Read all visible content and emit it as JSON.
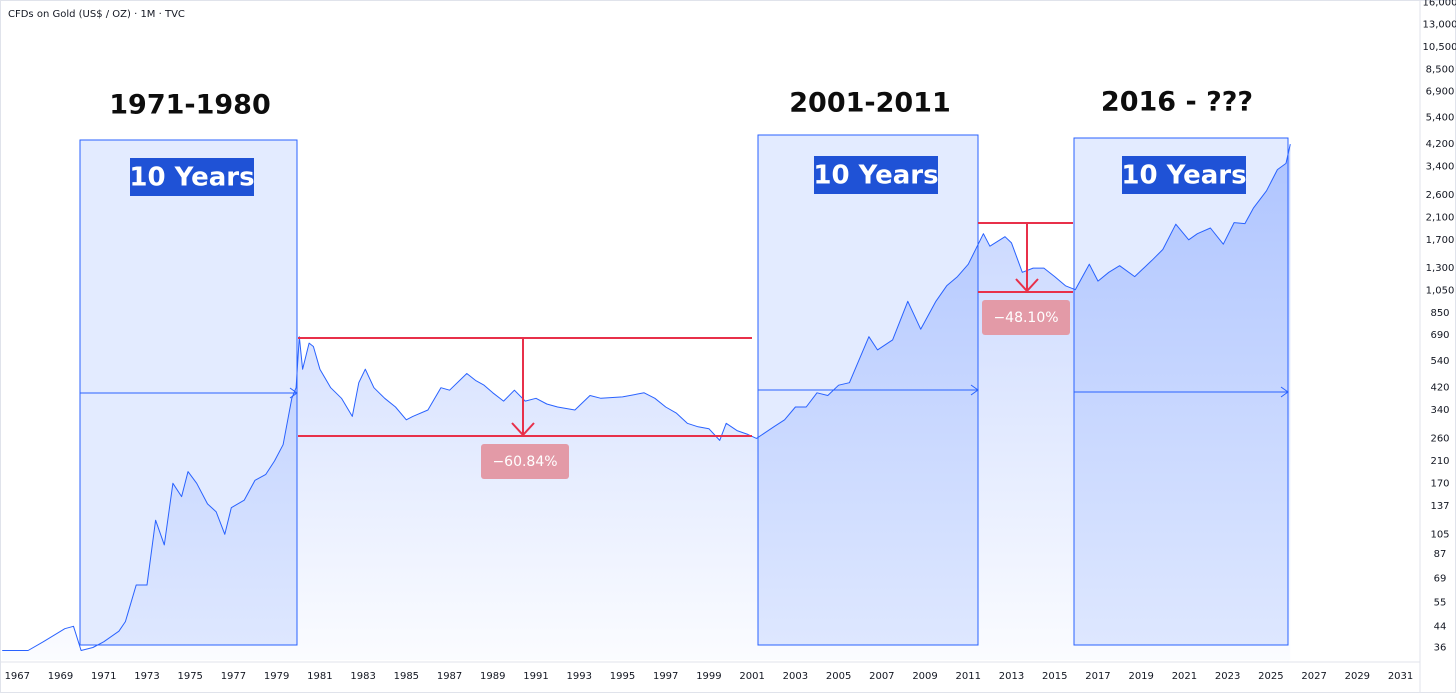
{
  "chart_data": {
    "type": "line",
    "title": "CFDs on Gold (US$ / OZ) · 1M · TVC",
    "log_scale": true,
    "grid": false,
    "color": "#2962ff",
    "xlim": [
      1966.2,
      2031.9
    ],
    "xticks": [
      1967,
      1969,
      1971,
      1973,
      1975,
      1977,
      1979,
      1981,
      1983,
      1985,
      1987,
      1989,
      1991,
      1993,
      1995,
      1997,
      1999,
      2001,
      2003,
      2005,
      2007,
      2009,
      2011,
      2013,
      2015,
      2017,
      2019,
      2021,
      2023,
      2025,
      2027,
      2029,
      2031
    ],
    "ylim": [
      32,
      16400
    ],
    "yticks": [
      36,
      44,
      55,
      69,
      87,
      105,
      137,
      170,
      210,
      260,
      340,
      420,
      540,
      690,
      850,
      {
        "value": 1050,
        "label": "1,050"
      },
      {
        "value": 1300,
        "label": "1,300"
      },
      {
        "value": 1700,
        "label": "1,700"
      },
      {
        "value": 2100,
        "label": "2,100"
      },
      {
        "value": 2600,
        "label": "2,600"
      },
      {
        "value": 3400,
        "label": "3,400"
      },
      {
        "value": 4200,
        "label": "4,200"
      },
      {
        "value": 5400,
        "label": "5,400"
      },
      {
        "value": 6900,
        "label": "6,900"
      },
      {
        "value": 8500,
        "label": "8,500"
      },
      {
        "value": 10500,
        "label": "10,500"
      },
      {
        "value": 13000,
        "label": "13,000"
      },
      {
        "value": 16000,
        "label": "16,000"
      }
    ],
    "x": [
      1966.3,
      1967.5,
      1968.2,
      1969.2,
      1969.6,
      1969.95,
      1970.5,
      1971.0,
      1971.7,
      1972.0,
      1972.5,
      1973.0,
      1973.4,
      1973.8,
      1974.2,
      1974.6,
      1974.9,
      1975.3,
      1975.8,
      1976.2,
      1976.6,
      1976.9,
      1977.5,
      1978.0,
      1978.5,
      1978.9,
      1979.3,
      1979.7,
      1979.9,
      1980.05,
      1980.2,
      1980.5,
      1980.7,
      1981.0,
      1981.5,
      1982.0,
      1982.5,
      1982.8,
      1983.1,
      1983.5,
      1984.0,
      1984.5,
      1985.0,
      1985.3,
      1986.0,
      1986.6,
      1987.0,
      1987.8,
      1988.2,
      1988.6,
      1989.0,
      1989.5,
      1990.0,
      1990.5,
      1991.0,
      1991.5,
      1992.0,
      1992.8,
      1993.5,
      1994.0,
      1995.0,
      1996.0,
      1996.5,
      1997.0,
      1997.5,
      1998.0,
      1998.5,
      1999.0,
      1999.5,
      1999.8,
      2000.3,
      2000.8,
      2001.2,
      2002.0,
      2002.5,
      2003.0,
      2003.5,
      2004.0,
      2004.5,
      2005.0,
      2005.5,
      2006.0,
      2006.4,
      2006.8,
      2007.5,
      2008.2,
      2008.8,
      2009.5,
      2010.0,
      2010.5,
      2011.0,
      2011.7,
      2012.0,
      2012.7,
      2013.0,
      2013.5,
      2014.0,
      2014.5,
      2015.0,
      2015.5,
      2015.95,
      2016.6,
      2017.0,
      2017.5,
      2018.0,
      2018.7,
      2019.5,
      2020.0,
      2020.6,
      2021.2,
      2021.6,
      2022.2,
      2022.8,
      2023.3,
      2023.8,
      2024.2,
      2024.8,
      2025.3,
      2025.7,
      2025.9
    ],
    "values": [
      35,
      35,
      38,
      43,
      44,
      35,
      36,
      38,
      42,
      46,
      65,
      65,
      120,
      95,
      170,
      150,
      190,
      170,
      140,
      130,
      105,
      135,
      145,
      175,
      185,
      210,
      245,
      380,
      420,
      680,
      500,
      640,
      620,
      500,
      420,
      380,
      320,
      440,
      500,
      420,
      380,
      350,
      310,
      320,
      340,
      420,
      410,
      480,
      450,
      430,
      400,
      370,
      410,
      370,
      380,
      360,
      350,
      340,
      390,
      380,
      385,
      400,
      380,
      350,
      330,
      300,
      290,
      285,
      255,
      300,
      280,
      270,
      260,
      290,
      310,
      350,
      350,
      400,
      390,
      430,
      440,
      560,
      680,
      600,
      660,
      950,
      730,
      950,
      1100,
      1200,
      1350,
      1800,
      1600,
      1750,
      1650,
      1250,
      1300,
      1300,
      1200,
      1100,
      1060,
      1350,
      1150,
      1250,
      1330,
      1200,
      1400,
      1550,
      1970,
      1700,
      1800,
      1900,
      1630,
      2000,
      1980,
      2300,
      2700,
      3300,
      3500,
      4200
    ],
    "period_labels": [
      "1971-1980",
      "2001-2011",
      "2016 - ???"
    ],
    "box_labels": [
      "10 Years",
      "10 Years",
      "10 Years"
    ],
    "drawdowns": [
      "−60.84%",
      "−48.10%"
    ]
  }
}
